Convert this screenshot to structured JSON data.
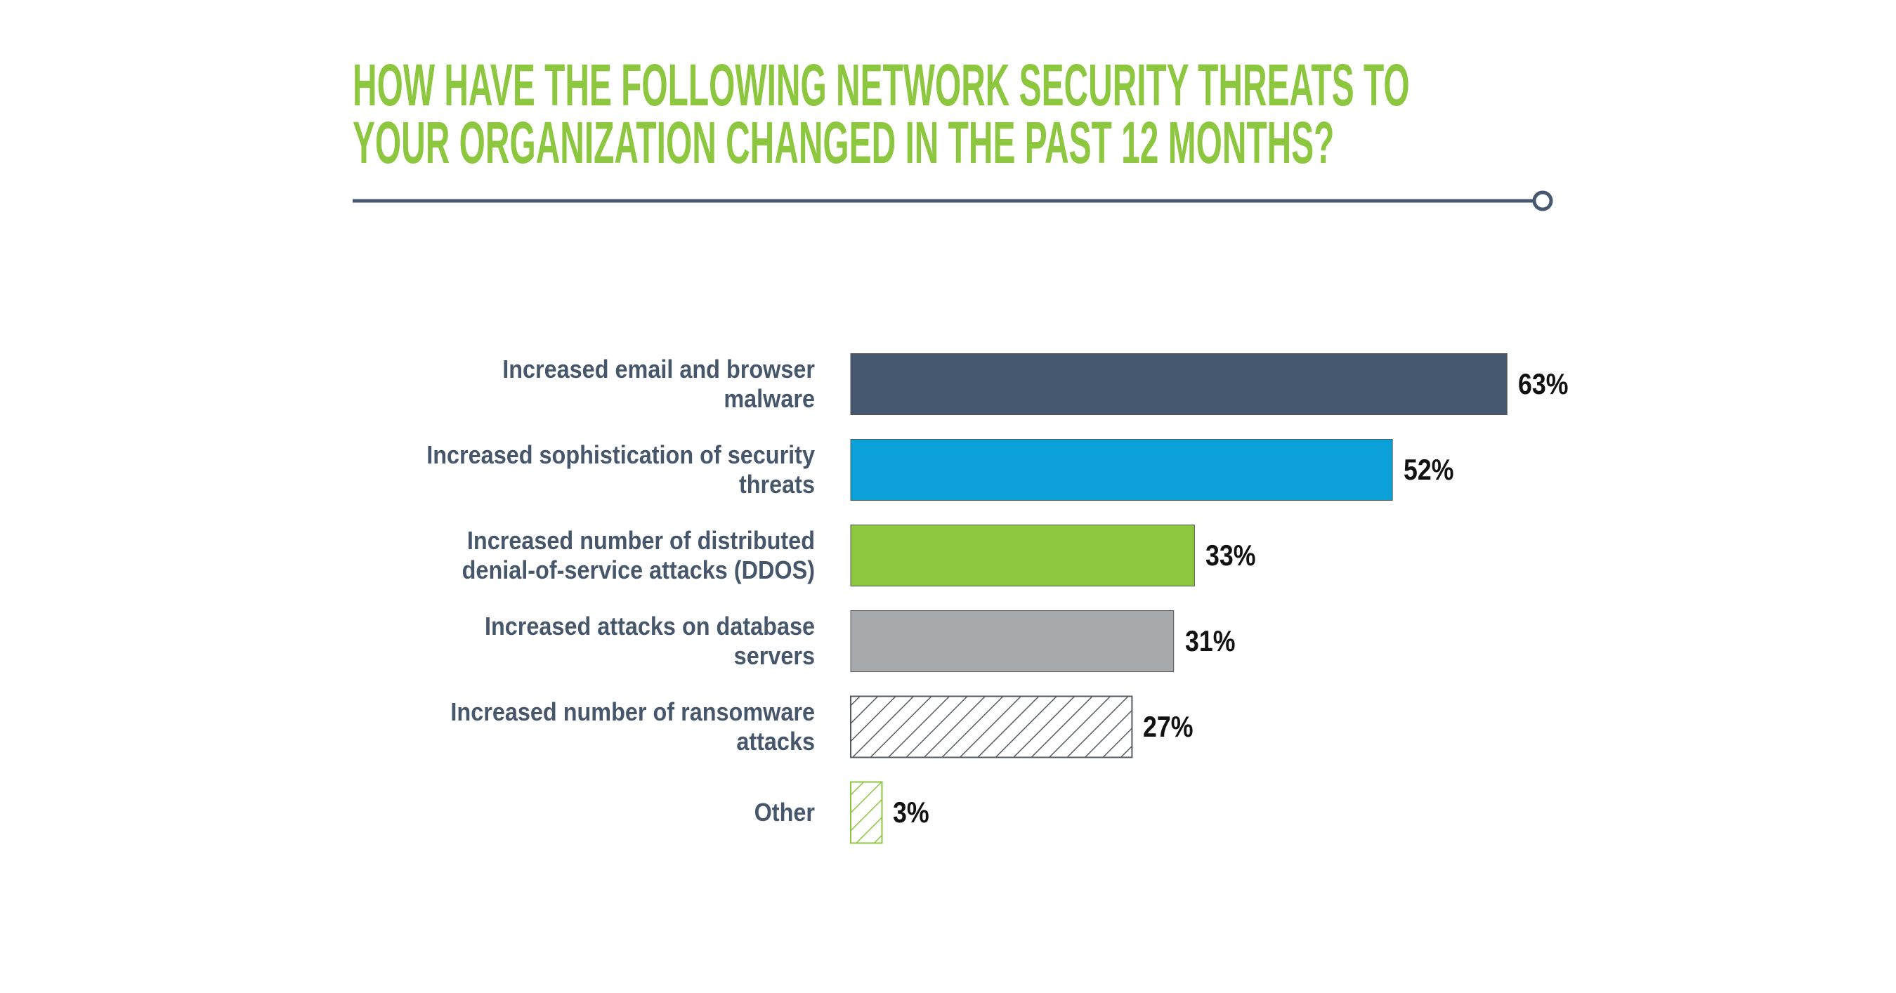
{
  "chart_data": {
    "type": "bar",
    "orientation": "horizontal",
    "title": "HOW HAVE THE FOLLOWING NETWORK SECURITY THREATS TO\nYOUR ORGANIZATION CHANGED IN THE PAST 12 MONTHS?",
    "categories": [
      "Increased email and browser\nmalware",
      "Increased sophistication of security\nthreats",
      "Increased number of distributed\ndenial-of-service attacks (DDOS)",
      "Increased attacks on database\nservers",
      "Increased number of ransomware\nattacks",
      "Other"
    ],
    "values": [
      63,
      52,
      33,
      31,
      27,
      3
    ],
    "value_labels": [
      "63%",
      "52%",
      "33%",
      "31%",
      "27%",
      "3%"
    ],
    "colors": [
      "#465870",
      "#0ba0d8",
      "#8dc63f",
      "#a7aaad",
      "#555b62",
      "#8dc63f"
    ],
    "hatched": [
      false,
      false,
      false,
      false,
      true,
      true
    ]
  }
}
